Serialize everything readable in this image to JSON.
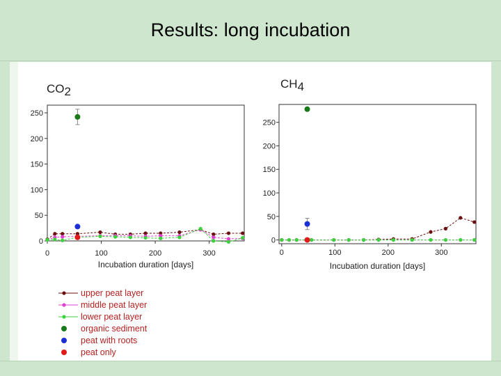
{
  "slide": {
    "title": "Results: long incubation"
  },
  "chart_data": [
    {
      "type": "scatter",
      "title": "CO2",
      "title_base": "CO",
      "title_sub": "2",
      "xlabel": "Incubation duration [days]",
      "ylabel": "",
      "xlim": [
        0,
        365
      ],
      "ylim": [
        0,
        265
      ],
      "xticks": [
        0,
        100,
        200,
        300
      ],
      "yticks": [
        0,
        50,
        100,
        150,
        200,
        250
      ],
      "series": [
        {
          "name": "upper peat layer",
          "color": "#6b0f0f",
          "mode": "line",
          "x": [
            0,
            14,
            28,
            56,
            98,
            126,
            154,
            182,
            210,
            245,
            284,
            308,
            336,
            362
          ],
          "y": [
            3,
            14,
            14,
            14,
            17,
            13,
            13,
            15,
            15,
            17,
            22,
            13,
            15,
            15
          ]
        },
        {
          "name": "middle peat layer",
          "color": "#e040d0",
          "mode": "line",
          "x": [
            0,
            14,
            28,
            56,
            98,
            126,
            154,
            182,
            210,
            245,
            284,
            308,
            336,
            362
          ],
          "y": [
            2,
            7,
            8,
            9,
            10,
            10,
            10,
            9,
            10,
            10,
            22,
            7,
            4,
            5
          ]
        },
        {
          "name": "lower peat layer",
          "color": "#3cd23c",
          "mode": "line",
          "x": [
            0,
            14,
            28,
            56,
            98,
            126,
            154,
            182,
            210,
            245,
            284,
            308,
            336,
            362
          ],
          "y": [
            2,
            3,
            1,
            7,
            9,
            8,
            7,
            6,
            5,
            7,
            24,
            0,
            -2,
            6
          ]
        },
        {
          "name": "organic sediment",
          "color": "#1a7a1a",
          "mode": "point",
          "x": [
            56
          ],
          "y": [
            242
          ],
          "err": [
            15
          ]
        },
        {
          "name": "peat with roots",
          "color": "#1a2fd6",
          "mode": "point",
          "x": [
            56
          ],
          "y": [
            28
          ],
          "err": [
            0
          ]
        },
        {
          "name": "peat only",
          "color": "#e01a1a",
          "mode": "point",
          "x": [
            56
          ],
          "y": [
            7
          ],
          "err": [
            0
          ]
        }
      ]
    },
    {
      "type": "scatter",
      "title": "CH4",
      "title_base": "CH",
      "title_sub": "4",
      "xlabel": "Incubation duration [days]",
      "ylabel": "",
      "xlim": [
        -5,
        365
      ],
      "ylim": [
        -8,
        288
      ],
      "xticks": [
        0,
        100,
        200,
        300
      ],
      "yticks": [
        0,
        50,
        100,
        150,
        200,
        250
      ],
      "series": [
        {
          "name": "upper peat layer",
          "color": "#6b0f0f",
          "mode": "line",
          "x": [
            0,
            14,
            28,
            56,
            98,
            126,
            154,
            182,
            210,
            245,
            280,
            308,
            336,
            362
          ],
          "y": [
            0,
            0,
            0,
            0,
            0,
            0,
            0,
            1,
            2,
            2,
            17,
            24,
            47,
            38
          ]
        },
        {
          "name": "middle peat layer",
          "color": "#e040d0",
          "mode": "line",
          "x": [
            0,
            14,
            28,
            56,
            98,
            126,
            154,
            182,
            210,
            245,
            280,
            308,
            336,
            362
          ],
          "y": [
            0,
            0,
            0,
            0,
            0,
            0,
            0,
            0,
            0,
            0,
            0,
            0,
            0,
            0
          ]
        },
        {
          "name": "lower peat layer",
          "color": "#3cd23c",
          "mode": "line",
          "x": [
            0,
            14,
            28,
            56,
            98,
            126,
            154,
            182,
            210,
            245,
            280,
            308,
            336,
            362
          ],
          "y": [
            0,
            0,
            0,
            0,
            0,
            0,
            0,
            0,
            0,
            0,
            0,
            0,
            0,
            0
          ]
        },
        {
          "name": "organic sediment",
          "color": "#1a7a1a",
          "mode": "point",
          "x": [
            48
          ],
          "y": [
            278
          ],
          "err": [
            0
          ]
        },
        {
          "name": "peat with roots",
          "color": "#1a2fd6",
          "mode": "point",
          "x": [
            48
          ],
          "y": [
            34
          ],
          "err": [
            12
          ]
        },
        {
          "name": "peat only",
          "color": "#e01a1a",
          "mode": "point",
          "x": [
            48
          ],
          "y": [
            0
          ],
          "err": [
            0
          ]
        }
      ]
    }
  ],
  "legend": [
    {
      "label": "upper peat layer",
      "color": "#6b0f0f",
      "line": true
    },
    {
      "label": "middle peat layer",
      "color": "#e040d0",
      "line": true
    },
    {
      "label": "lower peat layer",
      "color": "#3cd23c",
      "line": true
    },
    {
      "label": "organic sediment",
      "color": "#1a7a1a",
      "line": false
    },
    {
      "label": "peat with roots",
      "color": "#1a2fd6",
      "line": false
    },
    {
      "label": "peat only",
      "color": "#e01a1a",
      "line": false
    }
  ]
}
